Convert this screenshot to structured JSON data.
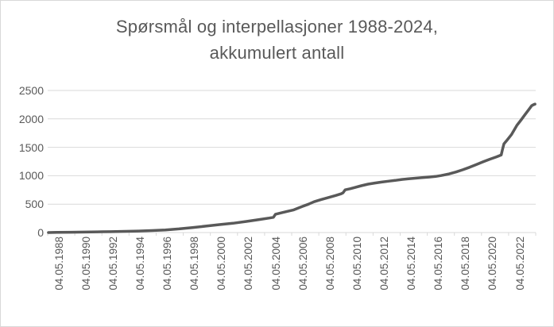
{
  "window": {
    "background_color": "#FFFFFF",
    "border_color": "#D9D9D9"
  },
  "chart_data": {
    "type": "line",
    "title": "Spørsmål og interpellasjoner 1988-2024, akkumulert antall",
    "title_lines": [
      "Spørsmål og interpellasjoner 1988-2024,",
      "akkumulert antall"
    ],
    "xlabel": "",
    "ylabel": "",
    "ylim": [
      0,
      2500
    ],
    "yticks": [
      0,
      500,
      1000,
      1500,
      2000,
      2500
    ],
    "xlim": [
      1988.3,
      2024.4
    ],
    "xticklabels": [
      "04.05.1988",
      "04.05.1990",
      "04.05.1992",
      "04.05.1994",
      "04.05.1996",
      "04.05.1998",
      "04.05.2000",
      "04.05.2002",
      "04.05.2004",
      "04.05.2006",
      "04.05.2008",
      "04.05.2010",
      "04.05.2012",
      "04.05.2014",
      "04.05.2016",
      "04.05.2018",
      "04.05.2020",
      "04.05.2022"
    ],
    "grid": true,
    "legend": "none",
    "colors": {
      "line": "#595959",
      "gridline": "#D9D9D9",
      "axis": "#D9D9D9",
      "text": "#595959",
      "title": "#595959"
    },
    "series": [
      {
        "points": [
          [
            1988.35,
            0
          ],
          [
            1989,
            3
          ],
          [
            1990,
            5
          ],
          [
            1991,
            8
          ],
          [
            1992,
            12
          ],
          [
            1993,
            16
          ],
          [
            1994,
            21
          ],
          [
            1995,
            27
          ],
          [
            1996,
            35
          ],
          [
            1997,
            46
          ],
          [
            1998,
            64
          ],
          [
            1999,
            88
          ],
          [
            2000,
            113
          ],
          [
            2001,
            140
          ],
          [
            2002,
            163
          ],
          [
            2003,
            196
          ],
          [
            2004,
            230
          ],
          [
            2004.7,
            255
          ],
          [
            2005.0,
            268
          ],
          [
            2005.15,
            322
          ],
          [
            2005.6,
            348
          ],
          [
            2006,
            372
          ],
          [
            2006.5,
            400
          ],
          [
            2007,
            447
          ],
          [
            2007.6,
            500
          ],
          [
            2008,
            542
          ],
          [
            2008.5,
            578
          ],
          [
            2009,
            612
          ],
          [
            2009.6,
            652
          ],
          [
            2010,
            682
          ],
          [
            2010.15,
            700
          ],
          [
            2010.3,
            752
          ],
          [
            2010.7,
            772
          ],
          [
            2011,
            792
          ],
          [
            2011.5,
            824
          ],
          [
            2012,
            852
          ],
          [
            2012.5,
            872
          ],
          [
            2013,
            888
          ],
          [
            2013.5,
            903
          ],
          [
            2014,
            918
          ],
          [
            2014.5,
            934
          ],
          [
            2015,
            947
          ],
          [
            2015.5,
            957
          ],
          [
            2016,
            966
          ],
          [
            2016.5,
            976
          ],
          [
            2017,
            988
          ],
          [
            2017.4,
            1003
          ],
          [
            2018,
            1032
          ],
          [
            2018.5,
            1066
          ],
          [
            2019,
            1105
          ],
          [
            2019.5,
            1148
          ],
          [
            2020,
            1196
          ],
          [
            2020.5,
            1244
          ],
          [
            2021,
            1290
          ],
          [
            2021.5,
            1332
          ],
          [
            2021.85,
            1366
          ],
          [
            2021.95,
            1468
          ],
          [
            2022.05,
            1560
          ],
          [
            2022.3,
            1632
          ],
          [
            2022.6,
            1722
          ],
          [
            2023,
            1884
          ],
          [
            2023.3,
            1976
          ],
          [
            2023.6,
            2072
          ],
          [
            2023.9,
            2168
          ],
          [
            2024.1,
            2232
          ],
          [
            2024.25,
            2252
          ],
          [
            2024.35,
            2260
          ]
        ]
      }
    ]
  }
}
